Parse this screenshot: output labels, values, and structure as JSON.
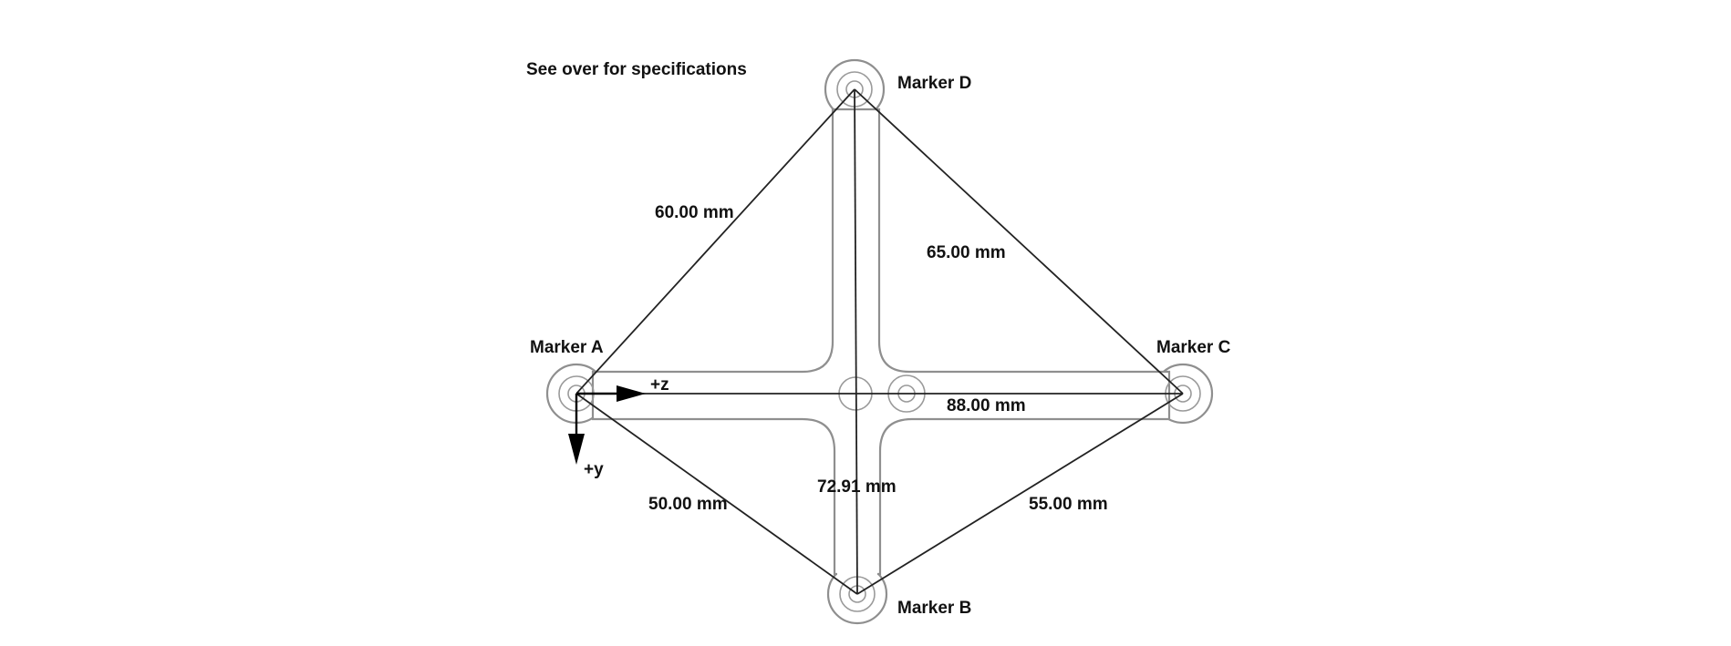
{
  "note": "See over for specifications",
  "markers": {
    "a": "Marker A",
    "b": "Marker B",
    "c": "Marker C",
    "d": "Marker D"
  },
  "distances": {
    "a_d": "60.00 mm",
    "d_c": "65.00 mm",
    "a_c": "88.00 mm",
    "a_b": "50.00 mm",
    "d_b": "72.91 mm",
    "c_b": "55.00 mm"
  },
  "axes": {
    "z": "+z",
    "y": "+y"
  }
}
